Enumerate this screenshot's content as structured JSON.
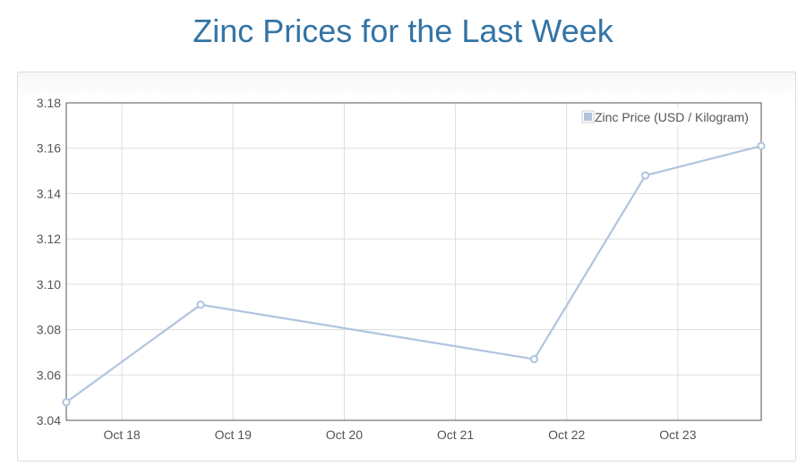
{
  "chart_data": {
    "type": "line",
    "title": "Zinc Prices for the Last Week",
    "xlabel": "",
    "ylabel": "",
    "x_ticks": [
      "Oct 18",
      "Oct 19",
      "Oct 20",
      "Oct 21",
      "Oct 22",
      "Oct 23"
    ],
    "y_ticks": [
      "3.04",
      "3.06",
      "3.08",
      "3.10",
      "3.12",
      "3.14",
      "3.16",
      "3.18"
    ],
    "ylim": [
      3.04,
      3.18
    ],
    "xlim": [
      "Oct 17 12:00",
      "Oct 23 18:00"
    ],
    "grid": true,
    "legend_position": "top-right",
    "series": [
      {
        "name": "Zinc Price (USD / Kilogram)",
        "color": "#b0c4de",
        "points": [
          {
            "x": "Oct 17 12:00",
            "y": 3.048
          },
          {
            "x": "Oct 18 17:00",
            "y": 3.091
          },
          {
            "x": "Oct 21 17:00",
            "y": 3.067
          },
          {
            "x": "Oct 22 17:00",
            "y": 3.148
          },
          {
            "x": "Oct 23 18:00",
            "y": 3.161
          }
        ]
      }
    ]
  }
}
